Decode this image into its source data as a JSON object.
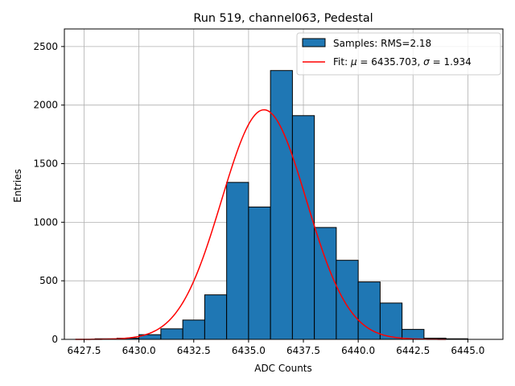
{
  "chart_data": {
    "type": "bar",
    "title": "Run 519, channel063, Pedestal",
    "xlabel": "ADC Counts",
    "ylabel": "Entries",
    "xlim": [
      6426.6,
      6446.6
    ],
    "ylim": [
      0,
      2650
    ],
    "xticks": [
      6427.5,
      6430.0,
      6432.5,
      6435.0,
      6437.5,
      6440.0,
      6442.5,
      6445.0
    ],
    "xtick_labels": [
      "6427.5",
      "6430.0",
      "6432.5",
      "6435.0",
      "6437.5",
      "6440.0",
      "6442.5",
      "6445.0"
    ],
    "yticks": [
      0,
      500,
      1000,
      1500,
      2000,
      2500
    ],
    "ytick_labels": [
      "0",
      "500",
      "1000",
      "1500",
      "2000",
      "2500"
    ],
    "grid": true,
    "legend_position": "top-right",
    "histogram": {
      "name": "Samples: RMS=2.18",
      "color": "#1f77b4",
      "edge_color": "#000000",
      "bin_edges": [
        6428,
        6429,
        6430,
        6431,
        6432,
        6433,
        6434,
        6435,
        6436,
        6437,
        6438,
        6439,
        6440,
        6441,
        6442,
        6443,
        6444,
        6445,
        6446
      ],
      "counts": [
        5,
        10,
        40,
        90,
        165,
        380,
        1340,
        1130,
        2295,
        1910,
        955,
        675,
        490,
        310,
        85,
        10,
        5,
        0
      ]
    },
    "fit": {
      "name": "Fit: μ = 6435.703, σ = 1.934",
      "name_parts": [
        "Fit: ",
        "μ",
        " = 6435.703, ",
        "σ",
        " = 1.934"
      ],
      "color": "#ff0000",
      "mu": 6435.703,
      "sigma": 1.934,
      "amplitude": 1960,
      "x_range": [
        6427.1,
        6444.0
      ]
    }
  }
}
